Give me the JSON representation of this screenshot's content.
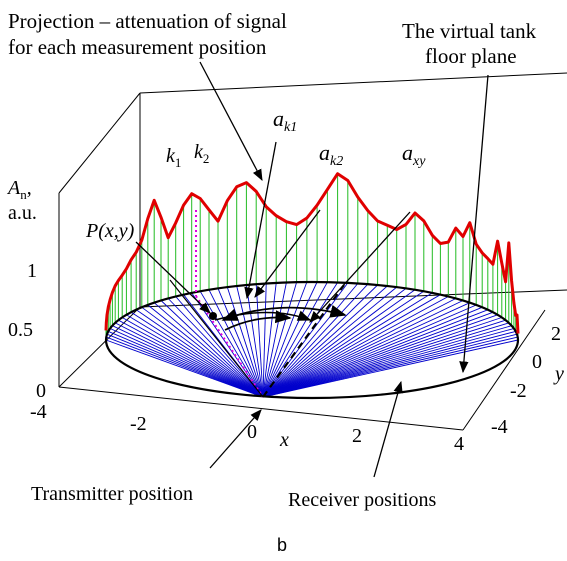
{
  "annotations": {
    "projection_line1": "Projection – attenuation of signal",
    "projection_line2": "for each measurement position",
    "virtual_tank_line1": "The virtual tank",
    "virtual_tank_line2": "floor plane",
    "transmitter": "Transmitter position",
    "receivers": "Receiver positions"
  },
  "symbols": {
    "k1_base": "k",
    "k1_sub": "1",
    "k2_base": "k",
    "k2_sub": "2",
    "ak1_base": "a",
    "ak1_sub": "k1",
    "ak2_base": "a",
    "ak2_sub": "k2",
    "axy_base": "a",
    "axy_sub": "xy",
    "point_label": "P(x,y)"
  },
  "axes": {
    "z_label_base": "A",
    "z_label_sub": "n",
    "z_label_comma": ",",
    "z_unit": "a.u.",
    "z_ticks": [
      "0",
      "0.5",
      "1"
    ],
    "x_ticks": [
      "-4",
      "-2",
      "0",
      "2",
      "4"
    ],
    "x_label": "x",
    "y_ticks": [
      "2",
      "0",
      "-2",
      "-4"
    ],
    "y_label": "y"
  },
  "caption": "b",
  "colors": {
    "projection": "#e00000",
    "stems": "#22bb22",
    "rays": "#0000cc",
    "marker": "#e000e0",
    "outline": "#000000"
  },
  "chart_data": {
    "type": "line",
    "description_series": "Projection",
    "projection_values": [
      0.15,
      0.22,
      0.3,
      0.38,
      0.45,
      0.52,
      0.58,
      0.62,
      0.66,
      0.72,
      0.82,
      0.9,
      1.05,
      1.35,
      1.6,
      1.3,
      0.95,
      1.15,
      1.4,
      1.55,
      1.45,
      1.25,
      1.05,
      1.35,
      1.55,
      1.6,
      1.45,
      1.2,
      1.05,
      0.95,
      0.9,
      1.0,
      1.2,
      1.45,
      1.7,
      1.6,
      1.35,
      1.15,
      1.0,
      0.95,
      0.9,
      1.0,
      1.2,
      1.1,
      0.9,
      0.8,
      0.85,
      1.1,
      1.0,
      1.25,
      0.95,
      0.85,
      0.8,
      0.75,
      1.15,
      0.85,
      0.6,
      1.25,
      0.7,
      0.4,
      0.25,
      0.3,
      0.15,
      0.1
    ],
    "z_range": [
      0,
      1
    ],
    "x_range": [
      -4,
      4
    ],
    "y_range": [
      -4,
      2
    ]
  }
}
